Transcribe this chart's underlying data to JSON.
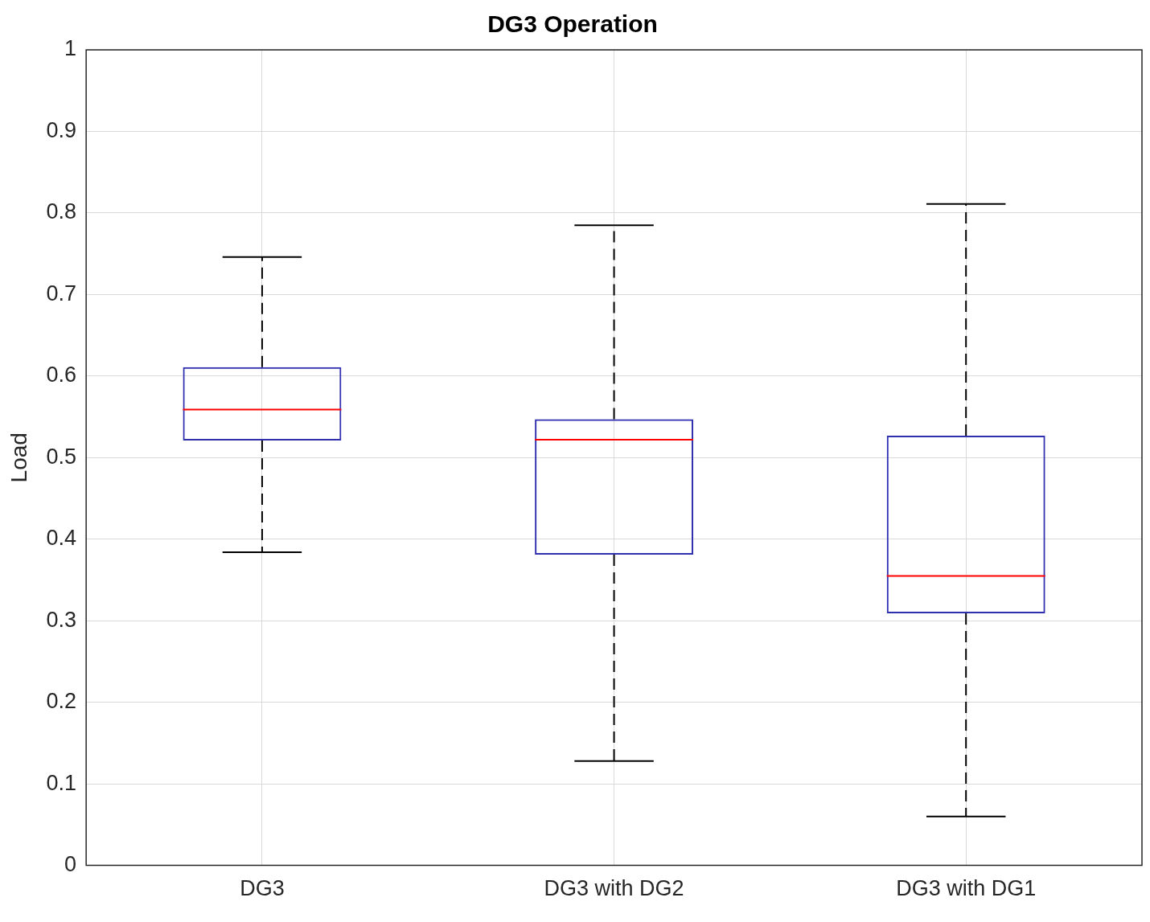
{
  "chart_data": {
    "type": "box",
    "title": "DG3 Operation",
    "ylabel": "Load",
    "categories": [
      "DG3",
      "DG3 with DG2",
      "DG3 with DG1"
    ],
    "color": "#2f2fb0",
    "boxes": [
      {
        "low": 0.384,
        "q1": 0.521,
        "median": 0.559,
        "q3": 0.611,
        "high": 0.746
      },
      {
        "low": 0.128,
        "q1": 0.381,
        "median": 0.522,
        "q3": 0.547,
        "high": 0.785
      },
      {
        "low": 0.06,
        "q1": 0.309,
        "median": 0.355,
        "q3": 0.527,
        "high": 0.811
      }
    ],
    "ylim": [
      0,
      1
    ],
    "yticks": [
      0,
      0.1,
      0.2,
      0.3,
      0.4,
      0.5,
      0.6,
      0.7,
      0.8,
      0.9,
      1
    ],
    "grid": true
  }
}
